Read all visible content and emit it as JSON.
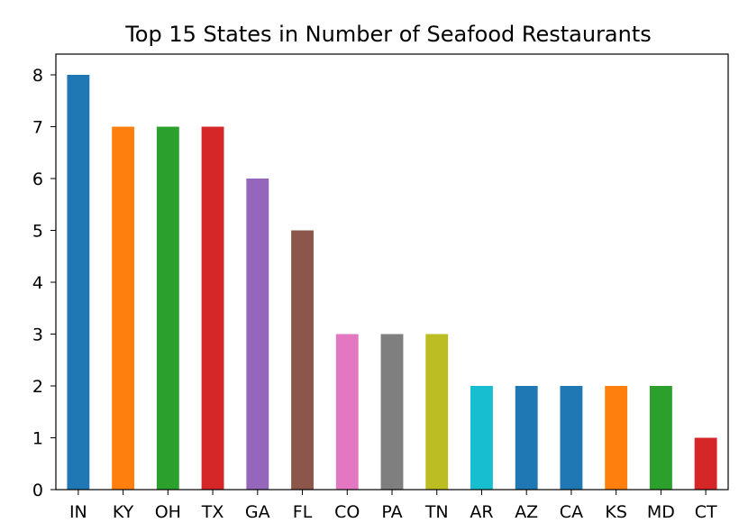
{
  "chart_data": {
    "type": "bar",
    "title": "Top 15 States in Number of Seafood Restaurants",
    "xlabel": "",
    "ylabel": "",
    "categories": [
      "IN",
      "KY",
      "OH",
      "TX",
      "GA",
      "FL",
      "CO",
      "PA",
      "TN",
      "AR",
      "AZ",
      "CA",
      "KS",
      "MD",
      "CT"
    ],
    "values": [
      8,
      7,
      7,
      7,
      6,
      5,
      3,
      3,
      3,
      2,
      2,
      2,
      2,
      2,
      1
    ],
    "colors": [
      "#1f77b4",
      "#ff7f0e",
      "#2ca02c",
      "#d62728",
      "#9467bd",
      "#8c564b",
      "#e377c2",
      "#7f7f7f",
      "#bcbd22",
      "#17becf",
      "#1f77b4",
      "#1f77b4",
      "#ff7f0e",
      "#2ca02c",
      "#d62728"
    ],
    "yticks": [
      0,
      1,
      2,
      3,
      4,
      5,
      6,
      7,
      8
    ],
    "ylim": [
      0,
      8.4
    ],
    "grid": false,
    "legend": "none"
  }
}
